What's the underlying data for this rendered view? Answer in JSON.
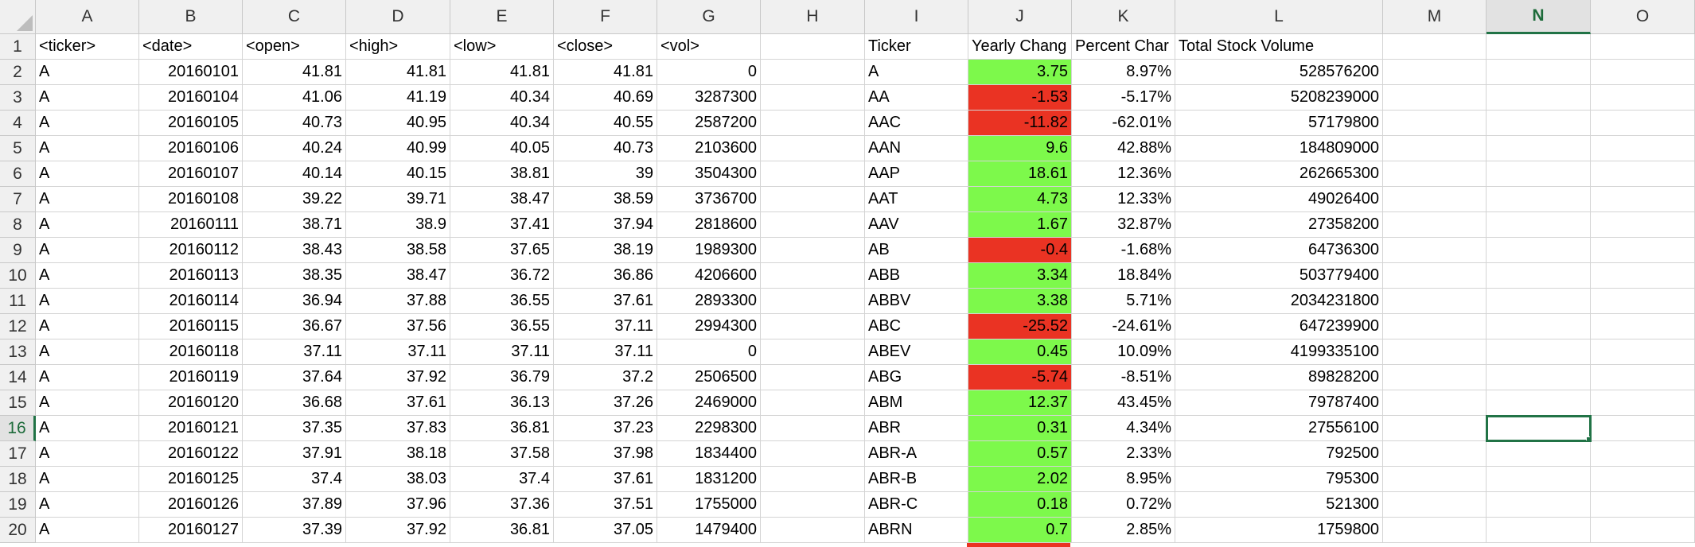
{
  "columns": [
    "A",
    "B",
    "C",
    "D",
    "E",
    "F",
    "G",
    "H",
    "I",
    "J",
    "K",
    "L",
    "M",
    "N",
    "O"
  ],
  "active_column": "N",
  "active_row": 16,
  "selected_cell": "N16",
  "colors": {
    "positive": "#7df94b",
    "negative": "#ea3323",
    "selection": "#217346"
  },
  "header_row": [
    "<ticker>",
    "<date>",
    "<open>",
    "<high>",
    "<low>",
    "<close>",
    "<vol>",
    "",
    "Ticker",
    "Yearly Chang",
    "Percent Char",
    "Total Stock Volume",
    "",
    "",
    ""
  ],
  "raw_rows": [
    [
      "A",
      "20160101",
      "41.81",
      "41.81",
      "41.81",
      "41.81",
      "0"
    ],
    [
      "A",
      "20160104",
      "41.06",
      "41.19",
      "40.34",
      "40.69",
      "3287300"
    ],
    [
      "A",
      "20160105",
      "40.73",
      "40.95",
      "40.34",
      "40.55",
      "2587200"
    ],
    [
      "A",
      "20160106",
      "40.24",
      "40.99",
      "40.05",
      "40.73",
      "2103600"
    ],
    [
      "A",
      "20160107",
      "40.14",
      "40.15",
      "38.81",
      "39",
      "3504300"
    ],
    [
      "A",
      "20160108",
      "39.22",
      "39.71",
      "38.47",
      "38.59",
      "3736700"
    ],
    [
      "A",
      "20160111",
      "38.71",
      "38.9",
      "37.41",
      "37.94",
      "2818600"
    ],
    [
      "A",
      "20160112",
      "38.43",
      "38.58",
      "37.65",
      "38.19",
      "1989300"
    ],
    [
      "A",
      "20160113",
      "38.35",
      "38.47",
      "36.72",
      "36.86",
      "4206600"
    ],
    [
      "A",
      "20160114",
      "36.94",
      "37.88",
      "36.55",
      "37.61",
      "2893300"
    ],
    [
      "A",
      "20160115",
      "36.67",
      "37.56",
      "36.55",
      "37.11",
      "2994300"
    ],
    [
      "A",
      "20160118",
      "37.11",
      "37.11",
      "37.11",
      "37.11",
      "0"
    ],
    [
      "A",
      "20160119",
      "37.64",
      "37.92",
      "36.79",
      "37.2",
      "2506500"
    ],
    [
      "A",
      "20160120",
      "36.68",
      "37.61",
      "36.13",
      "37.26",
      "2469000"
    ],
    [
      "A",
      "20160121",
      "37.35",
      "37.83",
      "36.81",
      "37.23",
      "2298300"
    ],
    [
      "A",
      "20160122",
      "37.91",
      "38.18",
      "37.58",
      "37.98",
      "1834400"
    ],
    [
      "A",
      "20160125",
      "37.4",
      "38.03",
      "37.4",
      "37.61",
      "1831200"
    ],
    [
      "A",
      "20160126",
      "37.89",
      "37.96",
      "37.36",
      "37.51",
      "1755000"
    ],
    [
      "A",
      "20160127",
      "37.39",
      "37.92",
      "36.81",
      "37.05",
      "1479400"
    ]
  ],
  "summary_rows": [
    {
      "ticker": "A",
      "change": "3.75",
      "percent": "8.97%",
      "volume": "528576200",
      "sign": "pos"
    },
    {
      "ticker": "AA",
      "change": "-1.53",
      "percent": "-5.17%",
      "volume": "5208239000",
      "sign": "neg"
    },
    {
      "ticker": "AAC",
      "change": "-11.82",
      "percent": "-62.01%",
      "volume": "57179800",
      "sign": "neg"
    },
    {
      "ticker": "AAN",
      "change": "9.6",
      "percent": "42.88%",
      "volume": "184809000",
      "sign": "pos"
    },
    {
      "ticker": "AAP",
      "change": "18.61",
      "percent": "12.36%",
      "volume": "262665300",
      "sign": "pos"
    },
    {
      "ticker": "AAT",
      "change": "4.73",
      "percent": "12.33%",
      "volume": "49026400",
      "sign": "pos"
    },
    {
      "ticker": "AAV",
      "change": "1.67",
      "percent": "32.87%",
      "volume": "27358200",
      "sign": "pos"
    },
    {
      "ticker": "AB",
      "change": "-0.4",
      "percent": "-1.68%",
      "volume": "64736300",
      "sign": "neg"
    },
    {
      "ticker": "ABB",
      "change": "3.34",
      "percent": "18.84%",
      "volume": "503779400",
      "sign": "pos"
    },
    {
      "ticker": "ABBV",
      "change": "3.38",
      "percent": "5.71%",
      "volume": "2034231800",
      "sign": "pos"
    },
    {
      "ticker": "ABC",
      "change": "-25.52",
      "percent": "-24.61%",
      "volume": "647239900",
      "sign": "neg"
    },
    {
      "ticker": "ABEV",
      "change": "0.45",
      "percent": "10.09%",
      "volume": "4199335100",
      "sign": "pos"
    },
    {
      "ticker": "ABG",
      "change": "-5.74",
      "percent": "-8.51%",
      "volume": "89828200",
      "sign": "neg"
    },
    {
      "ticker": "ABM",
      "change": "12.37",
      "percent": "43.45%",
      "volume": "79787400",
      "sign": "pos"
    },
    {
      "ticker": "ABR",
      "change": "0.31",
      "percent": "4.34%",
      "volume": "27556100",
      "sign": "pos"
    },
    {
      "ticker": "ABR-A",
      "change": "0.57",
      "percent": "2.33%",
      "volume": "792500",
      "sign": "pos"
    },
    {
      "ticker": "ABR-B",
      "change": "2.02",
      "percent": "8.95%",
      "volume": "795300",
      "sign": "pos"
    },
    {
      "ticker": "ABR-C",
      "change": "0.18",
      "percent": "0.72%",
      "volume": "521300",
      "sign": "pos"
    },
    {
      "ticker": "ABRN",
      "change": "0.7",
      "percent": "2.85%",
      "volume": "1759800",
      "sign": "pos"
    }
  ]
}
